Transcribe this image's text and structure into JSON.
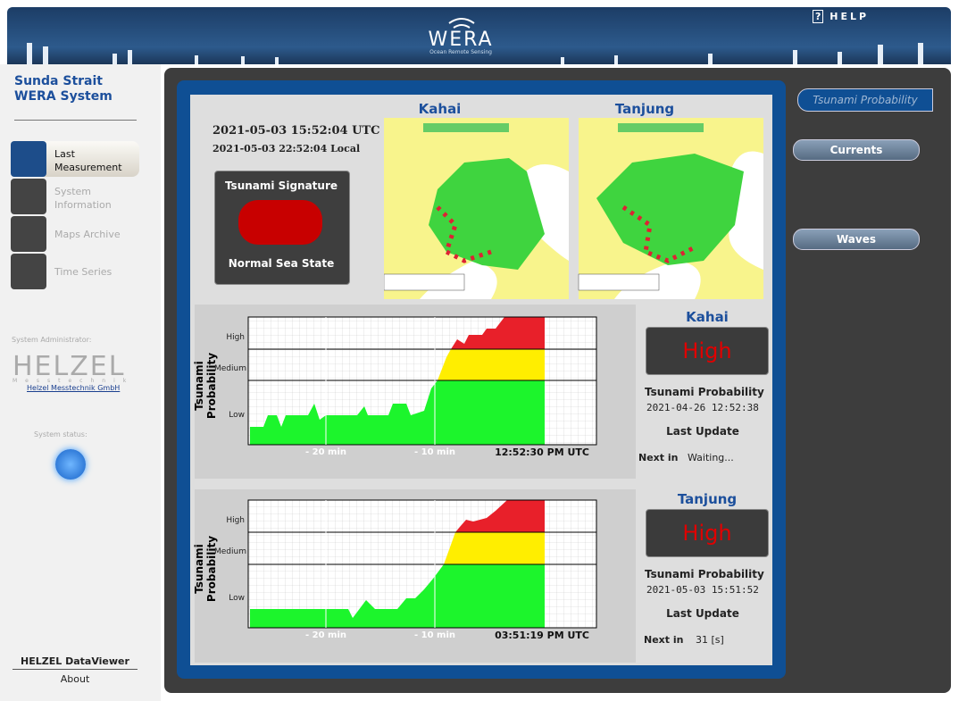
{
  "header": {
    "logo": "WERA",
    "logo_sub": "Ocean Remote Sensing",
    "help": "HELP"
  },
  "sidebar": {
    "title_line1": "Sunda Strait",
    "title_line2": "WERA System",
    "nav": [
      "Last Measurement",
      "System Information",
      "Maps Archive",
      "Time Series"
    ],
    "admin_label": "System Administrator:",
    "company": "HELZEL",
    "company_sub": "Messtechnik",
    "company_link": "Helzel Messtechnik GmbH",
    "status_label": "System status:",
    "footer_title": "HELZEL DataViewer",
    "footer_link": "About"
  },
  "main": {
    "utc": "2021-05-03 15:52:04 UTC",
    "local": "2021-05-03 22:52:04 Local",
    "signature": {
      "title": "Tsunami Signature",
      "state": "Normal Sea State"
    },
    "maps": [
      "Kahai",
      "Tanjung"
    ],
    "charts": [
      {
        "y_label": "Tsunami Probability",
        "levels": [
          "High",
          "Medium",
          "Low"
        ],
        "x_labels": [
          "- 20 min",
          "- 10 min"
        ],
        "time": "12:52:30 PM UTC"
      },
      {
        "y_label": "Tsunami Probability",
        "levels": [
          "High",
          "Medium",
          "Low"
        ],
        "x_labels": [
          "- 20 min",
          "- 10 min"
        ],
        "time": "03:51:19 PM UTC"
      }
    ],
    "stations": [
      {
        "name": "Kahai",
        "status": "High",
        "prob_label": "Tsunami Probability",
        "timestamp": "2021-04-26 12:52:38",
        "update_label": "Last Update",
        "next_label": "Next in",
        "next_value": "Waiting..."
      },
      {
        "name": "Tanjung",
        "status": "High",
        "prob_label": "Tsunami Probability",
        "timestamp": "2021-05-03 15:51:52",
        "update_label": "Last Update",
        "next_label": "Next in",
        "next_value": "31 [s]"
      }
    ]
  },
  "tabs": [
    "Tsunami Probability",
    "Currents",
    "Waves"
  ]
}
